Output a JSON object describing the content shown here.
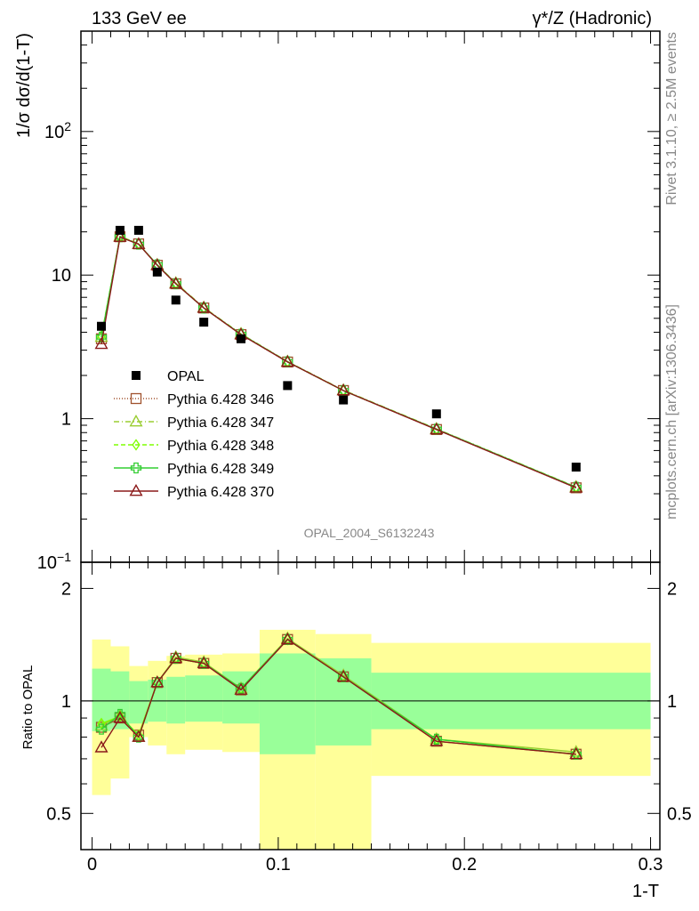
{
  "header": {
    "left": "133 GeV ee",
    "right": "γ*/Z (Hadronic)"
  },
  "side_text": {
    "rivet": "Rivet 3.1.10, ≥ 2.5M events",
    "mcplots": "mcplots.cern.ch [arXiv:1306.3436]"
  },
  "analysis_id": "OPAL_2004_S6132243",
  "chart_data": [
    {
      "type": "scatter",
      "panel": "main",
      "ylabel": "1/σ dσ/d(1-T)",
      "yscale": "log",
      "ylim": [
        0.1,
        500
      ],
      "xlim": [
        -0.006,
        0.305
      ],
      "y_ticks": [
        {
          "value": 0.1,
          "base": "10",
          "exp": "−1"
        },
        {
          "value": 1,
          "label": "1"
        },
        {
          "value": 10,
          "label": "10"
        },
        {
          "value": 100,
          "base": "10",
          "exp": "2"
        }
      ],
      "legend_position": "middle-left",
      "data": {
        "name": "OPAL",
        "x": [
          0.005,
          0.015,
          0.025,
          0.035,
          0.045,
          0.06,
          0.08,
          0.105,
          0.135,
          0.185,
          0.26
        ],
        "y": [
          4.4,
          20.5,
          20.5,
          10.5,
          6.7,
          4.7,
          3.6,
          1.7,
          1.35,
          1.08,
          0.46
        ]
      },
      "series": [
        {
          "name": "Pythia 6.428 346",
          "color": "#a0522d",
          "marker": "square-open",
          "dash": "1,2",
          "x": [
            0.005,
            0.015,
            0.025,
            0.035,
            0.045,
            0.06,
            0.08,
            0.105,
            0.135,
            0.185,
            0.26
          ],
          "y": [
            3.6,
            18.5,
            16.5,
            11.7,
            8.7,
            5.9,
            3.85,
            2.48,
            1.57,
            0.84,
            0.33
          ]
        },
        {
          "name": "Pythia 6.428 347",
          "color": "#9acd32",
          "marker": "triangle-open",
          "dash": "6,3,1,3",
          "x": [
            0.005,
            0.015,
            0.025,
            0.035,
            0.045,
            0.06,
            0.08,
            0.105,
            0.135,
            0.185,
            0.26
          ],
          "y": [
            3.7,
            18.7,
            16.4,
            11.8,
            8.8,
            5.95,
            3.9,
            2.5,
            1.58,
            0.85,
            0.335
          ]
        },
        {
          "name": "Pythia 6.428 348",
          "color": "#7fff00",
          "marker": "diamond-open",
          "dash": "5,3",
          "x": [
            0.005,
            0.015,
            0.025,
            0.035,
            0.045,
            0.06,
            0.08,
            0.105,
            0.135,
            0.185,
            0.26
          ],
          "y": [
            3.75,
            18.6,
            16.5,
            11.7,
            8.75,
            5.9,
            3.88,
            2.49,
            1.57,
            0.845,
            0.333
          ]
        },
        {
          "name": "Pythia 6.428 349",
          "color": "#32cd32",
          "marker": "cross-open",
          "dash": "",
          "x": [
            0.005,
            0.015,
            0.025,
            0.035,
            0.045,
            0.06,
            0.08,
            0.105,
            0.135,
            0.185,
            0.26
          ],
          "y": [
            3.7,
            18.5,
            16.4,
            11.8,
            8.7,
            5.9,
            3.87,
            2.49,
            1.57,
            0.845,
            0.333
          ]
        },
        {
          "name": "Pythia 6.428 370",
          "color": "#8b1a1a",
          "marker": "triangle-open",
          "dash": "",
          "x": [
            0.005,
            0.015,
            0.025,
            0.035,
            0.045,
            0.06,
            0.08,
            0.105,
            0.135,
            0.185,
            0.26
          ],
          "y": [
            3.3,
            18.4,
            16.4,
            11.7,
            8.7,
            5.9,
            3.85,
            2.48,
            1.57,
            0.84,
            0.33
          ]
        }
      ]
    },
    {
      "type": "line",
      "panel": "ratio",
      "ylabel": "Ratio to OPAL",
      "xlabel": "1-T",
      "yscale": "log",
      "ylim": [
        0.4,
        2.35
      ],
      "xlim": [
        -0.006,
        0.305
      ],
      "x_ticks": [
        {
          "value": 0,
          "label": "0"
        },
        {
          "value": 0.1,
          "label": "0.1"
        },
        {
          "value": 0.2,
          "label": "0.2"
        },
        {
          "value": 0.3,
          "label": "0.3"
        }
      ],
      "y_ticks": [
        {
          "value": 0.5,
          "label": "0.5"
        },
        {
          "value": 1,
          "label": "1"
        },
        {
          "value": 2,
          "label": "2"
        }
      ],
      "reference_line": 1,
      "bands": [
        {
          "x0": 0.0,
          "x1": 0.01,
          "inner": [
            0.83,
            1.22
          ],
          "outer": [
            0.56,
            1.46
          ]
        },
        {
          "x0": 0.01,
          "x1": 0.02,
          "inner": [
            0.84,
            1.2
          ],
          "outer": [
            0.62,
            1.4
          ]
        },
        {
          "x0": 0.02,
          "x1": 0.03,
          "inner": [
            0.87,
            1.13
          ],
          "outer": [
            0.8,
            1.24
          ]
        },
        {
          "x0": 0.03,
          "x1": 0.04,
          "inner": [
            0.88,
            1.14
          ],
          "outer": [
            0.76,
            1.28
          ]
        },
        {
          "x0": 0.04,
          "x1": 0.05,
          "inner": [
            0.87,
            1.16
          ],
          "outer": [
            0.72,
            1.32
          ]
        },
        {
          "x0": 0.05,
          "x1": 0.07,
          "inner": [
            0.88,
            1.17
          ],
          "outer": [
            0.74,
            1.33
          ]
        },
        {
          "x0": 0.07,
          "x1": 0.09,
          "inner": [
            0.87,
            1.2
          ],
          "outer": [
            0.73,
            1.34
          ]
        },
        {
          "x0": 0.09,
          "x1": 0.12,
          "inner": [
            0.72,
            1.34
          ],
          "outer": [
            0.35,
            1.55
          ]
        },
        {
          "x0": 0.12,
          "x1": 0.15,
          "inner": [
            0.76,
            1.3
          ],
          "outer": [
            0.36,
            1.51
          ]
        },
        {
          "x0": 0.15,
          "x1": 0.3,
          "inner": [
            0.84,
            1.19
          ],
          "outer": [
            0.63,
            1.43
          ]
        }
      ],
      "series": [
        {
          "name": "Pythia 6.428 346",
          "color": "#a0522d",
          "marker": "square-open",
          "x": [
            0.005,
            0.015,
            0.025,
            0.035,
            0.045,
            0.06,
            0.08,
            0.105,
            0.135,
            0.185,
            0.26
          ],
          "y": [
            0.85,
            0.9,
            0.81,
            1.12,
            1.3,
            1.26,
            1.07,
            1.46,
            1.16,
            0.78,
            0.72
          ]
        },
        {
          "name": "Pythia 6.428 347",
          "color": "#9acd32",
          "marker": "triangle-open",
          "x": [
            0.005,
            0.015,
            0.025,
            0.035,
            0.045,
            0.06,
            0.08,
            0.105,
            0.135,
            0.185,
            0.26
          ],
          "y": [
            0.86,
            0.91,
            0.8,
            1.12,
            1.31,
            1.27,
            1.08,
            1.47,
            1.17,
            0.79,
            0.73
          ]
        },
        {
          "name": "Pythia 6.428 348",
          "color": "#7fff00",
          "marker": "diamond-open",
          "x": [
            0.005,
            0.015,
            0.025,
            0.035,
            0.045,
            0.06,
            0.08,
            0.105,
            0.135,
            0.185,
            0.26
          ],
          "y": [
            0.87,
            0.91,
            0.81,
            1.12,
            1.3,
            1.26,
            1.08,
            1.46,
            1.16,
            0.79,
            0.72
          ]
        },
        {
          "name": "Pythia 6.428 349",
          "color": "#32cd32",
          "marker": "cross-open",
          "x": [
            0.005,
            0.015,
            0.025,
            0.035,
            0.045,
            0.06,
            0.08,
            0.105,
            0.135,
            0.185,
            0.26
          ],
          "y": [
            0.84,
            0.92,
            0.8,
            1.12,
            1.3,
            1.26,
            1.08,
            1.46,
            1.16,
            0.79,
            0.72
          ]
        },
        {
          "name": "Pythia 6.428 370",
          "color": "#8b1a1a",
          "marker": "triangle-open",
          "x": [
            0.005,
            0.015,
            0.025,
            0.035,
            0.045,
            0.06,
            0.08,
            0.105,
            0.135,
            0.185,
            0.26
          ],
          "y": [
            0.75,
            0.9,
            0.8,
            1.12,
            1.3,
            1.26,
            1.07,
            1.46,
            1.16,
            0.78,
            0.72
          ]
        }
      ]
    }
  ],
  "colors": {
    "band_inner": "#99ff99",
    "band_outer": "#ffff99",
    "data_marker": "#000000",
    "side_text": "#888888"
  }
}
